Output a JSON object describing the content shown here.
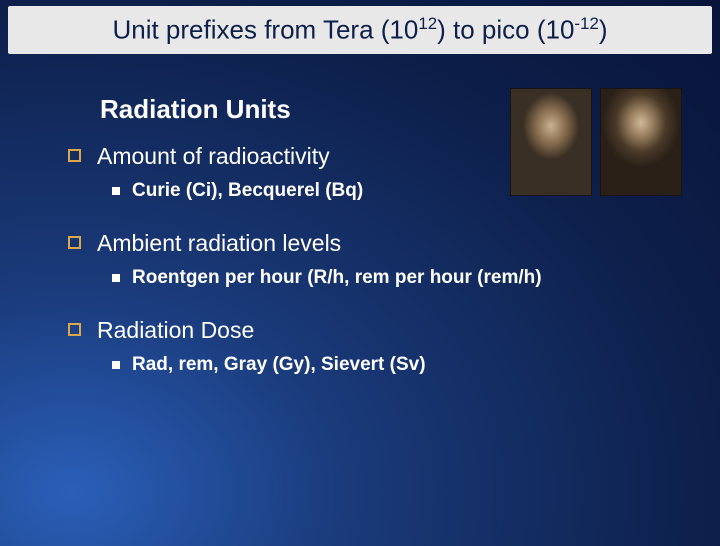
{
  "title": {
    "pre": "Unit prefixes from Tera (10",
    "sup1": "12",
    "mid": ") to pico (10",
    "sup2": "-12",
    "post": ")",
    "background_color": "#e8e8e8",
    "text_color": "#0d1f4a",
    "fontsize": 26
  },
  "section_heading": "Radiation Units",
  "items": [
    {
      "label": "Amount of radioactivity",
      "sub": "Curie (Ci), Becquerel (Bq)"
    },
    {
      "label": "Ambient radiation levels",
      "sub": "Roentgen per hour (R/h, rem per hour (rem/h)"
    },
    {
      "label": "Radiation Dose",
      "sub": "Rad, rem, Gray (Gy), Sievert (Sv)"
    }
  ],
  "styling": {
    "slide_background": "radial-gradient blue #2a5fb8 to #08143a",
    "section_heading_fontsize": 26,
    "section_heading_color": "#ffffff",
    "level1_fontsize": 23,
    "level1_bullet_color": "#d9a84a",
    "level1_bullet_style": "hollow-square",
    "level2_fontsize": 19,
    "level2_fontweight": "bold",
    "level2_bullet_color": "#ffffff",
    "level2_bullet_style": "filled-square",
    "portraits_count": 2,
    "portrait_size": "82x108"
  }
}
